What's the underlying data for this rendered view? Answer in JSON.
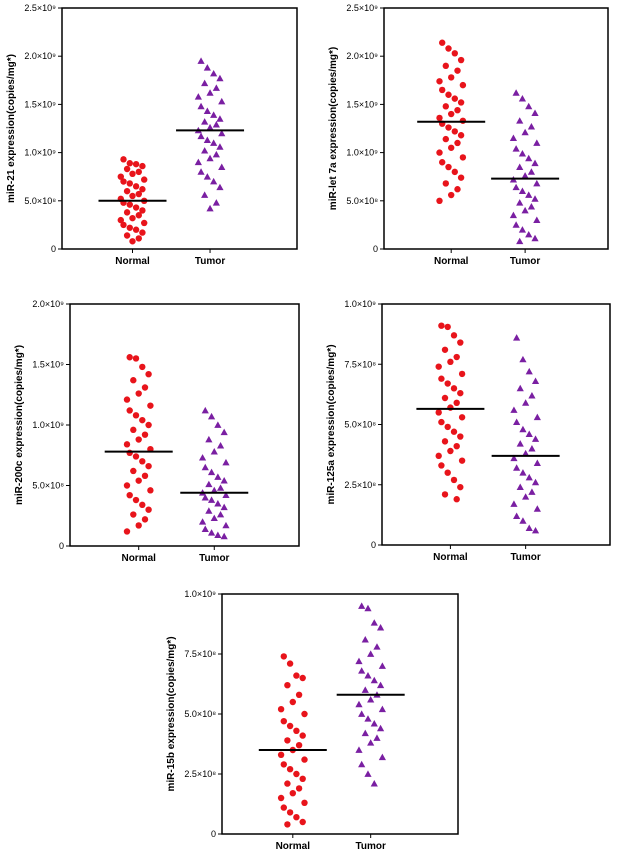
{
  "colors": {
    "normal": "#e8141b",
    "tumor": "#7a1fa2",
    "axis": "#000000",
    "median": "#000000"
  },
  "chart_data": [
    {
      "type": "scatter",
      "ylabel": "miR-21 expression(copies/mg*)",
      "categories": [
        "Normal",
        "Tumor"
      ],
      "ylim": [
        0,
        2500000000
      ],
      "yticks": [
        {
          "value": 0,
          "label": "0"
        },
        {
          "value": 500000000,
          "label": "5.0×10⁸"
        },
        {
          "value": 1000000000,
          "label": "1.0×10⁹"
        },
        {
          "value": 1500000000,
          "label": "1.5×10⁹"
        },
        {
          "value": 2000000000,
          "label": "2.0×10⁹"
        },
        {
          "value": 2500000000,
          "label": "2.5×10⁹"
        }
      ],
      "series": [
        {
          "name": "Normal",
          "marker": "circle",
          "median": 500000000,
          "values": [
            930000000,
            890000000,
            880000000,
            860000000,
            830000000,
            800000000,
            780000000,
            750000000,
            720000000,
            700000000,
            680000000,
            650000000,
            620000000,
            600000000,
            570000000,
            550000000,
            520000000,
            500000000,
            480000000,
            460000000,
            430000000,
            400000000,
            380000000,
            350000000,
            320000000,
            300000000,
            270000000,
            250000000,
            220000000,
            200000000,
            170000000,
            140000000,
            110000000,
            80000000
          ]
        },
        {
          "name": "Tumor",
          "marker": "triangle",
          "median": 1230000000,
          "values": [
            1950000000,
            1880000000,
            1820000000,
            1770000000,
            1720000000,
            1670000000,
            1620000000,
            1580000000,
            1530000000,
            1480000000,
            1430000000,
            1390000000,
            1350000000,
            1320000000,
            1290000000,
            1260000000,
            1230000000,
            1200000000,
            1170000000,
            1130000000,
            1100000000,
            1060000000,
            1020000000,
            980000000,
            940000000,
            900000000,
            850000000,
            800000000,
            750000000,
            700000000,
            640000000,
            560000000,
            480000000,
            420000000
          ]
        }
      ]
    },
    {
      "type": "scatter",
      "ylabel": "miR-let 7a expression(copies/mg*)",
      "categories": [
        "Normal",
        "Tumor"
      ],
      "ylim": [
        0,
        2500000000
      ],
      "yticks": [
        {
          "value": 0,
          "label": "0"
        },
        {
          "value": 500000000,
          "label": "5.0×10⁸"
        },
        {
          "value": 1000000000,
          "label": "1.0×10⁹"
        },
        {
          "value": 1500000000,
          "label": "1.5×10⁹"
        },
        {
          "value": 2000000000,
          "label": "2.0×10⁹"
        },
        {
          "value": 2500000000,
          "label": "2.5×10⁹"
        }
      ],
      "series": [
        {
          "name": "Normal",
          "marker": "circle",
          "median": 1320000000,
          "values": [
            2140000000,
            2080000000,
            2030000000,
            1960000000,
            1900000000,
            1850000000,
            1780000000,
            1740000000,
            1700000000,
            1650000000,
            1600000000,
            1560000000,
            1520000000,
            1480000000,
            1440000000,
            1400000000,
            1360000000,
            1330000000,
            1300000000,
            1260000000,
            1220000000,
            1180000000,
            1140000000,
            1100000000,
            1050000000,
            1000000000,
            950000000,
            900000000,
            850000000,
            800000000,
            740000000,
            680000000,
            620000000,
            560000000,
            500000000
          ]
        },
        {
          "name": "Tumor",
          "marker": "triangle",
          "median": 730000000,
          "values": [
            1620000000,
            1560000000,
            1480000000,
            1410000000,
            1330000000,
            1270000000,
            1210000000,
            1150000000,
            1100000000,
            1040000000,
            990000000,
            940000000,
            890000000,
            850000000,
            800000000,
            760000000,
            720000000,
            680000000,
            640000000,
            600000000,
            560000000,
            520000000,
            480000000,
            440000000,
            400000000,
            350000000,
            300000000,
            250000000,
            200000000,
            150000000,
            110000000,
            80000000
          ]
        }
      ]
    },
    {
      "type": "scatter",
      "ylabel": "miR-200c expression(copies/mg*)",
      "categories": [
        "Normal",
        "Tumor"
      ],
      "ylim": [
        0,
        2000000000
      ],
      "yticks": [
        {
          "value": 0,
          "label": "0"
        },
        {
          "value": 500000000,
          "label": "5.0×10⁸"
        },
        {
          "value": 1000000000,
          "label": "1.0×10⁹"
        },
        {
          "value": 1500000000,
          "label": "1.5×10⁹"
        },
        {
          "value": 2000000000,
          "label": "2.0×10⁹"
        }
      ],
      "series": [
        {
          "name": "Normal",
          "marker": "circle",
          "median": 780000000,
          "values": [
            1560000000,
            1550000000,
            1480000000,
            1420000000,
            1370000000,
            1310000000,
            1260000000,
            1210000000,
            1160000000,
            1120000000,
            1080000000,
            1040000000,
            1000000000,
            960000000,
            920000000,
            880000000,
            840000000,
            800000000,
            770000000,
            740000000,
            700000000,
            660000000,
            620000000,
            580000000,
            540000000,
            500000000,
            460000000,
            420000000,
            380000000,
            340000000,
            300000000,
            260000000,
            220000000,
            170000000,
            120000000
          ]
        },
        {
          "name": "Tumor",
          "marker": "triangle",
          "median": 440000000,
          "values": [
            1120000000,
            1070000000,
            1000000000,
            940000000,
            880000000,
            830000000,
            780000000,
            730000000,
            690000000,
            650000000,
            610000000,
            570000000,
            540000000,
            510000000,
            480000000,
            460000000,
            440000000,
            420000000,
            400000000,
            380000000,
            350000000,
            320000000,
            290000000,
            260000000,
            230000000,
            200000000,
            170000000,
            140000000,
            110000000,
            90000000,
            80000000
          ]
        }
      ]
    },
    {
      "type": "scatter",
      "ylabel": "miR-125a expression(copies/mg*)",
      "categories": [
        "Normal",
        "Tumor"
      ],
      "ylim": [
        0,
        1000000000
      ],
      "yticks": [
        {
          "value": 0,
          "label": "0"
        },
        {
          "value": 250000000,
          "label": "2.5×10⁸"
        },
        {
          "value": 500000000,
          "label": "5.0×10⁸"
        },
        {
          "value": 750000000,
          "label": "7.5×10⁸"
        },
        {
          "value": 1000000000,
          "label": "1.0×10⁹"
        }
      ],
      "series": [
        {
          "name": "Normal",
          "marker": "circle",
          "median": 565000000,
          "values": [
            910000000,
            905000000,
            870000000,
            840000000,
            810000000,
            780000000,
            760000000,
            740000000,
            710000000,
            690000000,
            670000000,
            650000000,
            630000000,
            610000000,
            590000000,
            570000000,
            550000000,
            530000000,
            510000000,
            490000000,
            470000000,
            450000000,
            430000000,
            410000000,
            390000000,
            370000000,
            350000000,
            330000000,
            300000000,
            270000000,
            240000000,
            210000000,
            190000000
          ]
        },
        {
          "name": "Tumor",
          "marker": "triangle",
          "median": 370000000,
          "values": [
            860000000,
            770000000,
            720000000,
            680000000,
            650000000,
            620000000,
            590000000,
            560000000,
            530000000,
            510000000,
            480000000,
            460000000,
            440000000,
            420000000,
            400000000,
            380000000,
            360000000,
            340000000,
            320000000,
            300000000,
            280000000,
            260000000,
            240000000,
            220000000,
            200000000,
            170000000,
            150000000,
            120000000,
            100000000,
            70000000,
            60000000
          ]
        }
      ]
    },
    {
      "type": "scatter",
      "ylabel": "miR-15b expression(copies/mg*)",
      "categories": [
        "Normal",
        "Tumor"
      ],
      "ylim": [
        0,
        1000000000
      ],
      "yticks": [
        {
          "value": 0,
          "label": "0"
        },
        {
          "value": 250000000,
          "label": "2.5×10⁸"
        },
        {
          "value": 500000000,
          "label": "5.0×10⁸"
        },
        {
          "value": 750000000,
          "label": "7.5×10⁸"
        },
        {
          "value": 1000000000,
          "label": "1.0×10⁹"
        }
      ],
      "series": [
        {
          "name": "Normal",
          "marker": "circle",
          "median": 350000000,
          "values": [
            740000000,
            710000000,
            660000000,
            650000000,
            620000000,
            580000000,
            550000000,
            520000000,
            500000000,
            470000000,
            450000000,
            430000000,
            410000000,
            390000000,
            370000000,
            350000000,
            330000000,
            310000000,
            290000000,
            270000000,
            250000000,
            230000000,
            210000000,
            190000000,
            170000000,
            150000000,
            130000000,
            110000000,
            90000000,
            70000000,
            50000000,
            40000000
          ]
        },
        {
          "name": "Tumor",
          "marker": "triangle",
          "median": 580000000,
          "values": [
            950000000,
            940000000,
            880000000,
            860000000,
            810000000,
            780000000,
            750000000,
            720000000,
            700000000,
            680000000,
            660000000,
            640000000,
            620000000,
            600000000,
            580000000,
            560000000,
            540000000,
            520000000,
            500000000,
            480000000,
            460000000,
            440000000,
            420000000,
            400000000,
            380000000,
            350000000,
            320000000,
            290000000,
            250000000,
            210000000
          ]
        }
      ]
    }
  ]
}
